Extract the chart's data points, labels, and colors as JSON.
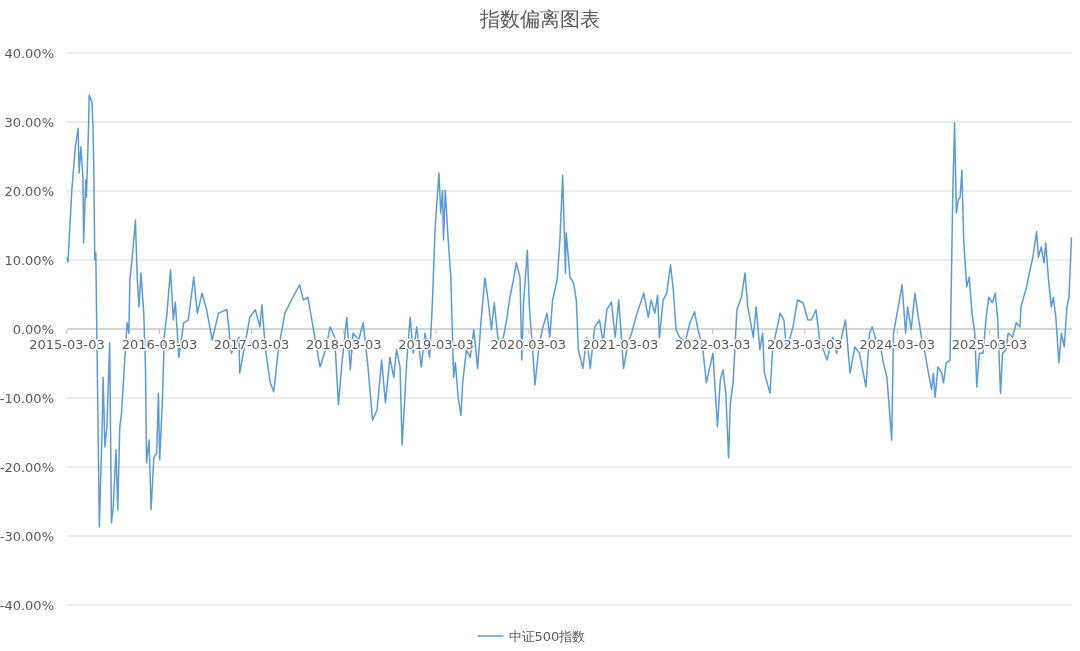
{
  "chart_data": {
    "type": "line",
    "title": "指数偏离图表",
    "x": [
      "2015-03-03",
      "2015-03-07",
      "2015-03-22",
      "2015-04-05",
      "2015-04-16",
      "2015-04-20",
      "2015-04-27",
      "2015-05-05",
      "2015-05-08",
      "2015-05-16",
      "2015-05-19",
      "2015-05-27",
      "2015-05-30",
      "2015-06-10",
      "2015-06-14",
      "2015-06-17",
      "2015-06-21",
      "2015-06-25",
      "2015-07-02",
      "2015-07-09",
      "2015-07-20",
      "2015-07-24",
      "2015-07-31",
      "2015-08-08",
      "2015-08-19",
      "2015-08-26",
      "2015-09-02",
      "2015-09-13",
      "2015-09-20",
      "2015-09-28",
      "2015-10-05",
      "2015-10-16",
      "2015-10-27",
      "2015-11-03",
      "2015-11-07",
      "2015-11-18",
      "2015-11-29",
      "2015-12-06",
      "2015-12-13",
      "2015-12-21",
      "2016-01-01",
      "2016-01-08",
      "2016-01-12",
      "2016-01-22",
      "2016-01-30",
      "2016-02-10",
      "2016-02-21",
      "2016-02-28",
      "2016-03-04",
      "2016-03-15",
      "2016-03-22",
      "2016-04-02",
      "2016-04-16",
      "2016-04-27",
      "2016-05-05",
      "2016-05-19",
      "2016-06-07",
      "2016-06-25",
      "2016-07-17",
      "2016-07-31",
      "2016-08-19",
      "2016-09-06",
      "2016-09-28",
      "2016-10-23",
      "2016-11-25",
      "2016-12-13",
      "2017-01-12",
      "2017-01-15",
      "2017-02-24",
      "2017-03-18",
      "2017-04-05",
      "2017-04-13",
      "2017-04-27",
      "2017-05-16",
      "2017-05-30",
      "2017-06-17",
      "2017-07-13",
      "2017-08-08",
      "2017-09-09",
      "2017-09-24",
      "2017-10-12",
      "2017-11-03",
      "2017-11-29",
      "2017-12-21",
      "2018-01-08",
      "2018-01-26",
      "2018-02-10",
      "2018-02-24",
      "2018-03-15",
      "2018-03-29",
      "2018-04-09",
      "2018-05-01",
      "2018-05-19",
      "2018-06-07",
      "2018-06-25",
      "2018-07-13",
      "2018-07-31",
      "2018-08-15",
      "2018-09-02",
      "2018-09-17",
      "2018-09-28",
      "2018-10-12",
      "2018-10-20",
      "2018-10-31",
      "2018-11-07",
      "2018-11-21",
      "2018-12-03",
      "2018-12-17",
      "2019-01-04",
      "2019-01-19",
      "2019-02-06",
      "2019-02-17",
      "2019-02-28",
      "2019-03-15",
      "2019-03-22",
      "2019-03-29",
      "2019-04-02",
      "2019-04-09",
      "2019-04-20",
      "2019-05-01",
      "2019-05-12",
      "2019-05-19",
      "2019-05-30",
      "2019-06-10",
      "2019-06-17",
      "2019-07-02",
      "2019-07-17",
      "2019-07-31",
      "2019-08-15",
      "2019-08-29",
      "2019-09-13",
      "2019-09-24",
      "2019-10-09",
      "2019-10-20",
      "2019-11-03",
      "2019-11-18",
      "2019-12-06",
      "2019-12-21",
      "2020-01-04",
      "2020-01-15",
      "2020-01-30",
      "2020-02-06",
      "2020-02-13",
      "2020-02-28",
      "2020-03-07",
      "2020-03-22",
      "2020-03-29",
      "2020-04-13",
      "2020-04-27",
      "2020-05-16",
      "2020-05-27",
      "2020-06-07",
      "2020-06-25",
      "2020-07-06",
      "2020-07-17",
      "2020-07-28",
      "2020-07-31",
      "2020-08-15",
      "2020-08-29",
      "2020-09-09",
      "2020-09-17",
      "2020-10-05",
      "2020-10-20",
      "2020-11-03",
      "2020-11-21",
      "2020-12-10",
      "2020-12-24",
      "2021-01-08",
      "2021-01-26",
      "2021-02-10",
      "2021-02-24",
      "2021-03-15",
      "2021-04-02",
      "2021-04-16",
      "2021-05-05",
      "2021-06-03",
      "2021-06-21",
      "2021-07-02",
      "2021-07-17",
      "2021-07-28",
      "2021-08-04",
      "2021-08-19",
      "2021-09-02",
      "2021-09-17",
      "2021-09-28",
      "2021-10-09",
      "2021-10-23",
      "2021-11-14",
      "2021-12-03",
      "2021-12-21",
      "2022-01-04",
      "2022-01-22",
      "2022-02-06",
      "2022-03-04",
      "2022-03-22",
      "2022-04-02",
      "2022-04-13",
      "2022-04-24",
      "2022-05-05",
      "2022-05-12",
      "2022-05-23",
      "2022-06-07",
      "2022-06-25",
      "2022-07-09",
      "2022-07-20",
      "2022-08-11",
      "2022-08-22",
      "2022-09-06",
      "2022-09-17",
      "2022-09-24",
      "2022-10-16",
      "2022-10-27",
      "2022-11-14",
      "2022-11-25",
      "2022-12-10",
      "2022-12-21",
      "2023-01-01",
      "2023-01-15",
      "2023-02-02",
      "2023-02-24",
      "2023-03-15",
      "2023-03-29",
      "2023-04-16",
      "2023-05-01",
      "2023-05-30",
      "2023-06-21",
      "2023-07-06",
      "2023-07-24",
      "2023-08-11",
      "2023-08-29",
      "2023-09-17",
      "2023-10-05",
      "2023-10-31",
      "2023-11-14",
      "2023-11-25",
      "2023-12-10",
      "2023-12-28",
      "2024-01-08",
      "2024-01-22",
      "2024-02-02",
      "2024-02-10",
      "2024-02-17",
      "2024-03-07",
      "2024-03-22",
      "2024-04-05",
      "2024-04-13",
      "2024-04-27",
      "2024-05-12",
      "2024-05-23",
      "2024-06-07",
      "2024-06-21",
      "2024-07-02",
      "2024-07-17",
      "2024-07-24",
      "2024-07-31",
      "2024-08-11",
      "2024-08-26",
      "2024-09-02",
      "2024-09-13",
      "2024-09-28",
      "2024-10-09",
      "2024-10-16",
      "2024-10-23",
      "2024-10-31",
      "2024-11-07",
      "2024-11-14",
      "2024-11-21",
      "2024-12-03",
      "2024-12-13",
      "2024-12-24",
      "2025-01-04",
      "2025-01-12",
      "2025-01-22",
      "2025-02-06",
      "2025-02-17",
      "2025-02-28",
      "2025-03-15",
      "2025-03-26",
      "2025-04-05",
      "2025-04-16",
      "2025-04-24",
      "2025-05-08",
      "2025-05-16",
      "2025-06-03",
      "2025-06-17",
      "2025-07-02",
      "2025-07-06",
      "2025-07-28",
      "2025-08-08",
      "2025-08-22",
      "2025-09-06",
      "2025-09-13",
      "2025-09-24",
      "2025-10-05",
      "2025-10-12",
      "2025-10-23",
      "2025-11-03",
      "2025-11-11",
      "2025-11-21",
      "2025-12-03",
      "2025-12-13",
      "2025-12-24",
      "2026-01-04",
      "2026-01-12",
      "2026-01-22"
    ],
    "series": [
      {
        "name": "中证500指数",
        "color": "#5b9bd5",
        "values": [
          10.4,
          9.7,
          20.1,
          26.4,
          29.1,
          22.6,
          26.4,
          22.0,
          12.5,
          21.6,
          19.1,
          28.8,
          33.9,
          32.8,
          29.3,
          23.5,
          10.0,
          11.0,
          -8.4,
          -28.7,
          -14.6,
          -7.0,
          -17.1,
          -14.2,
          -2.0,
          -28.1,
          -25.8,
          -17.5,
          -26.2,
          -14.2,
          -12.2,
          -5.5,
          0.9,
          -0.6,
          7.1,
          11.0,
          15.8,
          7.5,
          3.2,
          8.1,
          2.3,
          -5.9,
          -19.4,
          -16.1,
          -26.2,
          -18.6,
          -18.0,
          -9.3,
          -19.0,
          -10.3,
          -1.2,
          2.3,
          8.6,
          1.3,
          3.9,
          -4.1,
          0.9,
          1.3,
          7.5,
          2.3,
          5.2,
          2.8,
          -1.6,
          2.3,
          2.8,
          -3.5,
          -1.2,
          -6.4,
          1.7,
          2.8,
          0.3,
          3.5,
          -3.0,
          -7.8,
          -9.1,
          -3.0,
          2.3,
          4.2,
          6.4,
          4.2,
          4.6,
          -0.1,
          -5.5,
          -3.0,
          0.3,
          -1.2,
          -11.0,
          -4.9,
          1.7,
          -5.9,
          -0.6,
          -1.6,
          0.9,
          -5.5,
          -13.2,
          -11.7,
          -4.5,
          -10.7,
          -4.1,
          -7.0,
          -3.0,
          -5.5,
          -16.8,
          -9.9,
          -4.9,
          1.7,
          -3.5,
          0.3,
          -5.5,
          -0.6,
          -4.1,
          3.8,
          14.8,
          22.6,
          16.8,
          20.1,
          12.9,
          20.1,
          13.3,
          7.5,
          -7.0,
          -4.9,
          -9.9,
          -12.5,
          -7.8,
          -3.0,
          -4.1,
          -0.1,
          -5.7,
          1.3,
          7.4,
          4.6,
          -0.1,
          3.8,
          -1.2,
          -2.6,
          0.9,
          4.6,
          7.1,
          9.6,
          7.5,
          -4.5,
          3.8,
          11.4,
          3.2,
          -4.1,
          -8.1,
          -3.0,
          -0.1,
          2.3,
          -1.2,
          4.2,
          7.1,
          12.9,
          22.3,
          8.1,
          13.9,
          7.5,
          6.7,
          4.2,
          -3.0,
          -5.7,
          -1.2,
          -5.7,
          0.3,
          1.3,
          -2.0,
          2.8,
          3.9,
          -1.2,
          4.2,
          -5.7,
          -2.0,
          -0.6,
          2.0,
          5.2,
          1.7,
          4.2,
          2.3,
          4.9,
          -1.3,
          4.2,
          5.2,
          9.3,
          5.7,
          -0.1,
          -1.2,
          -1.9,
          0.9,
          2.5,
          -0.1,
          -2.6,
          -7.8,
          -3.5,
          -14.2,
          -7.4,
          -5.9,
          -9.3,
          -18.7,
          -10.7,
          -7.8,
          2.8,
          4.6,
          8.1,
          3.2,
          -1.2,
          3.2,
          -3.0,
          -0.6,
          -6.4,
          -9.3,
          -2.6,
          0.3,
          2.3,
          1.3,
          -3.0,
          -1.6,
          0.3,
          4.2,
          3.8,
          1.3,
          1.3,
          2.8,
          -1.6,
          -4.5,
          -1.2,
          -3.5,
          -1.6,
          1.3,
          -6.4,
          -2.6,
          -3.5,
          -8.4,
          -0.6,
          0.3,
          -1.6,
          -2.6,
          -4.9,
          -7.0,
          -12.2,
          -16.1,
          -0.6,
          3.2,
          6.4,
          -0.6,
          3.2,
          -0.1,
          5.2,
          2.3,
          -1.2,
          -3.5,
          -5.9,
          -8.8,
          -6.4,
          -9.9,
          -5.5,
          -6.4,
          -7.8,
          -4.9,
          -4.5,
          19.7,
          29.9,
          16.8,
          18.7,
          19.1,
          23.0,
          12.9,
          6.1,
          7.5,
          2.3,
          -0.6,
          -8.4,
          -3.5,
          -3.5,
          1.3,
          4.6,
          3.8,
          5.2,
          1.3,
          -9.3,
          -3.5,
          -3.0,
          -0.6,
          -1.2,
          0.9,
          0.3,
          3.2,
          6.1,
          8.1,
          10.4,
          14.1,
          10.4,
          11.9,
          9.6,
          12.5,
          7.1,
          3.2,
          4.6,
          1.7,
          -4.9,
          -0.6,
          -2.6,
          3.2,
          4.6,
          13.3
        ]
      }
    ],
    "xlim": [
      "2015-03-03",
      "2026-01-24"
    ],
    "xticks": [
      "2015-03-03",
      "2016-03-03",
      "2017-03-03",
      "2018-03-03",
      "2019-03-03",
      "2020-03-03",
      "2021-03-03",
      "2022-03-03",
      "2023-03-03",
      "2024-03-03",
      "2025-03-03"
    ],
    "ylim": [
      -40,
      40
    ],
    "yticks": [
      {
        "value": -40,
        "label": "-40.00%"
      },
      {
        "value": -30,
        "label": "-30.00%"
      },
      {
        "value": -20,
        "label": "-20.00%"
      },
      {
        "value": -10,
        "label": "-10.00%"
      },
      {
        "value": 0,
        "label": "0.00%"
      },
      {
        "value": 10,
        "label": "10.00%"
      },
      {
        "value": 20,
        "label": "20.00%"
      },
      {
        "value": 30,
        "label": "30.00%"
      },
      {
        "value": 40,
        "label": "40.00%"
      }
    ],
    "grid": "y",
    "legend": "bottom"
  }
}
